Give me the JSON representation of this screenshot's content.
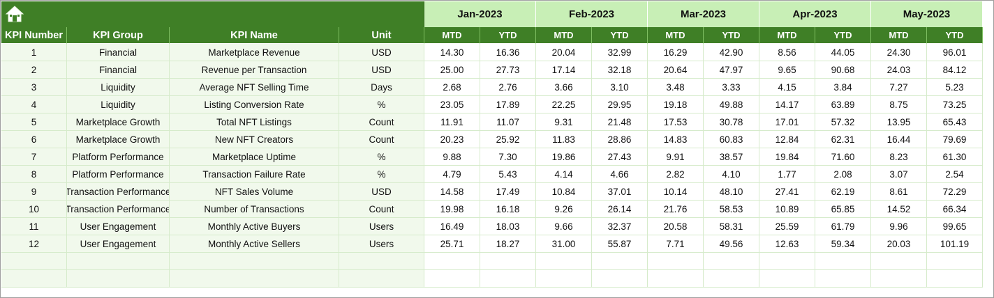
{
  "months": [
    "Jan-2023",
    "Feb-2023",
    "Mar-2023",
    "Apr-2023",
    "May-2023"
  ],
  "headers": {
    "kpi_number": "KPI Number",
    "kpi_group": "KPI Group",
    "kpi_name": "KPI Name",
    "unit": "Unit",
    "mtd": "MTD",
    "ytd": "YTD"
  },
  "rows": [
    {
      "num": "1",
      "group": "Financial",
      "name": "Marketplace Revenue",
      "unit": "USD",
      "vals": [
        "14.30",
        "16.36",
        "20.04",
        "32.99",
        "16.29",
        "42.90",
        "8.56",
        "44.05",
        "24.30",
        "96.01"
      ]
    },
    {
      "num": "2",
      "group": "Financial",
      "name": "Revenue per Transaction",
      "unit": "USD",
      "vals": [
        "25.00",
        "27.73",
        "17.14",
        "32.18",
        "20.64",
        "47.97",
        "9.65",
        "90.68",
        "24.03",
        "84.12"
      ]
    },
    {
      "num": "3",
      "group": "Liquidity",
      "name": "Average NFT Selling Time",
      "unit": "Days",
      "vals": [
        "2.68",
        "2.76",
        "3.66",
        "3.10",
        "3.48",
        "3.33",
        "4.15",
        "3.84",
        "7.27",
        "5.23"
      ]
    },
    {
      "num": "4",
      "group": "Liquidity",
      "name": "Listing Conversion Rate",
      "unit": "%",
      "vals": [
        "23.05",
        "17.89",
        "22.25",
        "29.95",
        "19.18",
        "49.88",
        "14.17",
        "63.89",
        "8.75",
        "73.25"
      ]
    },
    {
      "num": "5",
      "group": "Marketplace Growth",
      "name": "Total NFT Listings",
      "unit": "Count",
      "vals": [
        "11.91",
        "11.07",
        "9.31",
        "21.48",
        "17.53",
        "30.78",
        "17.01",
        "57.32",
        "13.95",
        "65.43"
      ]
    },
    {
      "num": "6",
      "group": "Marketplace Growth",
      "name": "New NFT Creators",
      "unit": "Count",
      "vals": [
        "20.23",
        "25.92",
        "11.83",
        "28.86",
        "14.83",
        "60.83",
        "12.84",
        "62.31",
        "16.44",
        "79.69"
      ]
    },
    {
      "num": "7",
      "group": "Platform Performance",
      "name": "Marketplace Uptime",
      "unit": "%",
      "vals": [
        "9.88",
        "7.30",
        "19.86",
        "27.43",
        "9.91",
        "38.57",
        "19.84",
        "71.60",
        "8.23",
        "61.30"
      ]
    },
    {
      "num": "8",
      "group": "Platform Performance",
      "name": "Transaction Failure Rate",
      "unit": "%",
      "vals": [
        "4.79",
        "5.43",
        "4.14",
        "4.66",
        "2.82",
        "4.10",
        "1.77",
        "2.08",
        "3.07",
        "2.54"
      ]
    },
    {
      "num": "9",
      "group": "Transaction Performance",
      "name": "NFT Sales Volume",
      "unit": "USD",
      "vals": [
        "14.58",
        "17.49",
        "10.84",
        "37.01",
        "10.14",
        "48.10",
        "27.41",
        "62.19",
        "8.61",
        "72.29"
      ]
    },
    {
      "num": "10",
      "group": "Transaction Performance",
      "name": "Number of Transactions",
      "unit": "Count",
      "vals": [
        "19.98",
        "16.18",
        "9.26",
        "26.14",
        "21.76",
        "58.53",
        "10.89",
        "65.85",
        "14.52",
        "66.34"
      ]
    },
    {
      "num": "11",
      "group": "User Engagement",
      "name": "Monthly Active Buyers",
      "unit": "Users",
      "vals": [
        "16.49",
        "18.03",
        "9.66",
        "32.37",
        "20.58",
        "58.31",
        "25.59",
        "61.79",
        "9.96",
        "99.65"
      ]
    },
    {
      "num": "12",
      "group": "User Engagement",
      "name": "Monthly Active Sellers",
      "unit": "Users",
      "vals": [
        "25.71",
        "18.27",
        "31.00",
        "55.87",
        "7.71",
        "49.56",
        "12.63",
        "59.34",
        "20.03",
        "101.19"
      ]
    }
  ],
  "empty_rows": 2,
  "icons": {
    "home": "home-icon"
  },
  "colors": {
    "header_green": "#3f7f26",
    "month_green": "#c8efb6",
    "left_fill": "#f1f9ec"
  }
}
